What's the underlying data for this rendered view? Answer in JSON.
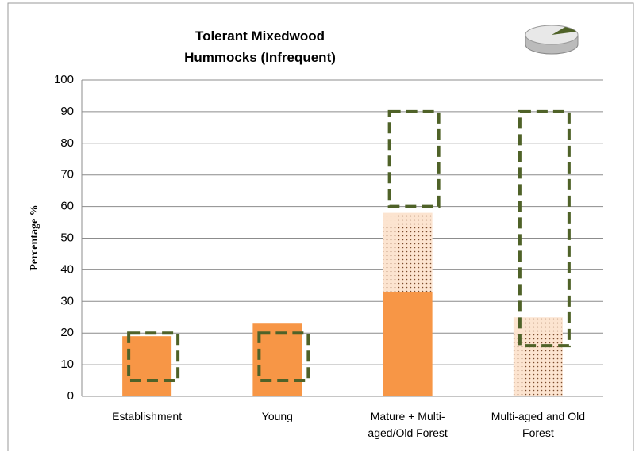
{
  "chart_data": {
    "type": "bar",
    "title": "Tolerant Mixedwood Hummocks (Infrequent)",
    "y_label": "Percentage %",
    "categories": [
      "Establishment",
      "Young",
      "Mature + Multi-aged/Old Forest",
      "Multi-aged and Old Forest"
    ],
    "series": [
      {
        "color": "#f79646",
        "values": [
          19,
          23,
          33,
          0
        ]
      },
      {
        "color": "#fce4d0",
        "pattern": "dots",
        "values": [
          0,
          0,
          25,
          25
        ]
      }
    ],
    "ranges": {
      "color": "#4f6228",
      "low": [
        5,
        5,
        60,
        16
      ],
      "high": [
        20,
        20,
        90,
        90
      ]
    },
    "ylim": [
      0,
      100
    ],
    "yticks": [
      0,
      10,
      20,
      30,
      40,
      50,
      60,
      70,
      80,
      90,
      100
    ],
    "grid": true
  }
}
